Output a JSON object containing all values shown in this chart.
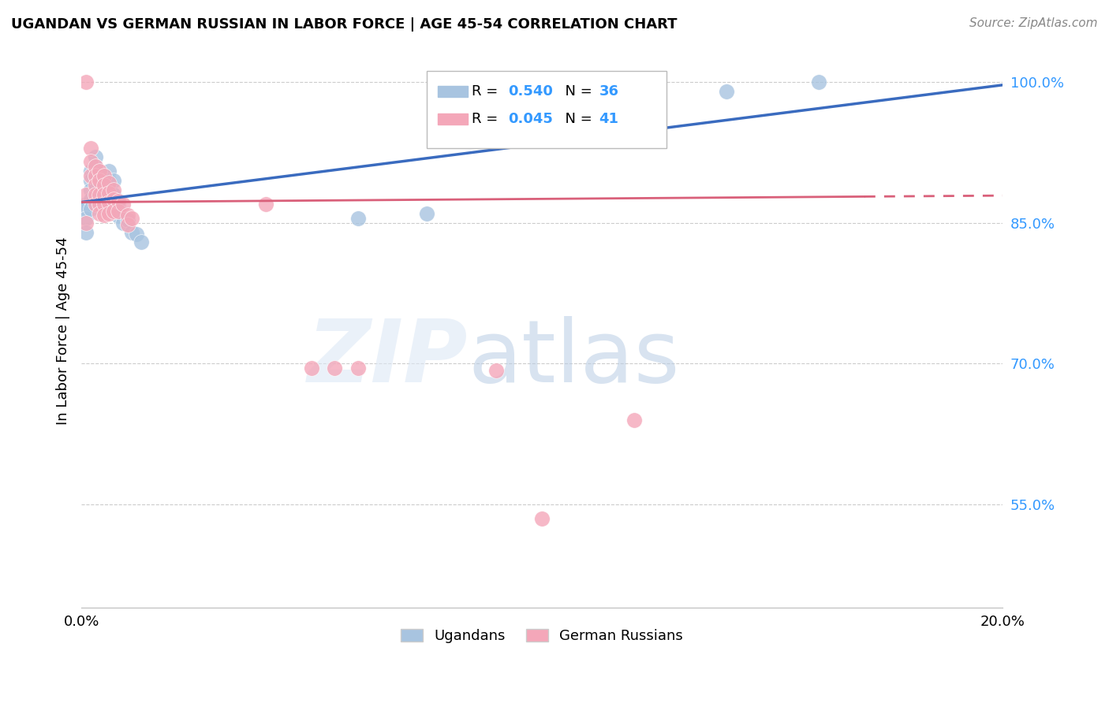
{
  "title": "UGANDAN VS GERMAN RUSSIAN IN LABOR FORCE | AGE 45-54 CORRELATION CHART",
  "source": "Source: ZipAtlas.com",
  "ylabel": "In Labor Force | Age 45-54",
  "xlim": [
    0.0,
    0.2
  ],
  "ylim": [
    0.44,
    1.03
  ],
  "yticks": [
    0.55,
    0.7,
    0.85,
    1.0
  ],
  "ytick_labels": [
    "55.0%",
    "70.0%",
    "85.0%",
    "100.0%"
  ],
  "xticks": [
    0.0,
    0.04,
    0.08,
    0.12,
    0.16,
    0.2
  ],
  "xtick_labels": [
    "0.0%",
    "",
    "",
    "",
    "",
    "20.0%"
  ],
  "ugandan_color": "#a8c4e0",
  "german_russian_color": "#f4a7b9",
  "trend_ugandan_color": "#3a6bbf",
  "trend_german_russian_color": "#d9607a",
  "R_ugandan": 0.54,
  "N_ugandan": 36,
  "R_german": 0.045,
  "N_german": 41,
  "ugandan_x": [
    0.001,
    0.001,
    0.001,
    0.001,
    0.002,
    0.002,
    0.002,
    0.002,
    0.002,
    0.003,
    0.003,
    0.003,
    0.003,
    0.004,
    0.004,
    0.004,
    0.004,
    0.005,
    0.005,
    0.005,
    0.006,
    0.006,
    0.006,
    0.007,
    0.007,
    0.008,
    0.008,
    0.009,
    0.01,
    0.011,
    0.012,
    0.013,
    0.06,
    0.075,
    0.14,
    0.16
  ],
  "ugandan_y": [
    0.87,
    0.865,
    0.855,
    0.84,
    0.905,
    0.895,
    0.885,
    0.875,
    0.865,
    0.92,
    0.91,
    0.9,
    0.885,
    0.895,
    0.888,
    0.878,
    0.868,
    0.9,
    0.89,
    0.875,
    0.905,
    0.895,
    0.882,
    0.895,
    0.88,
    0.87,
    0.857,
    0.85,
    0.853,
    0.84,
    0.838,
    0.83,
    0.855,
    0.86,
    0.99,
    1.0
  ],
  "german_russian_x": [
    0.001,
    0.001,
    0.002,
    0.002,
    0.002,
    0.003,
    0.003,
    0.003,
    0.003,
    0.003,
    0.004,
    0.004,
    0.004,
    0.004,
    0.004,
    0.005,
    0.005,
    0.005,
    0.005,
    0.005,
    0.006,
    0.006,
    0.006,
    0.006,
    0.007,
    0.007,
    0.007,
    0.008,
    0.008,
    0.009,
    0.01,
    0.01,
    0.011,
    0.04,
    0.05,
    0.055,
    0.06,
    0.09,
    0.1,
    0.12,
    0.001
  ],
  "german_russian_y": [
    0.88,
    1.0,
    0.93,
    0.915,
    0.9,
    0.91,
    0.9,
    0.89,
    0.88,
    0.87,
    0.905,
    0.895,
    0.88,
    0.87,
    0.86,
    0.9,
    0.89,
    0.88,
    0.87,
    0.858,
    0.893,
    0.882,
    0.872,
    0.86,
    0.885,
    0.875,
    0.862,
    0.873,
    0.862,
    0.87,
    0.858,
    0.848,
    0.855,
    0.87,
    0.695,
    0.695,
    0.695,
    0.693,
    0.535,
    0.64,
    0.85
  ]
}
